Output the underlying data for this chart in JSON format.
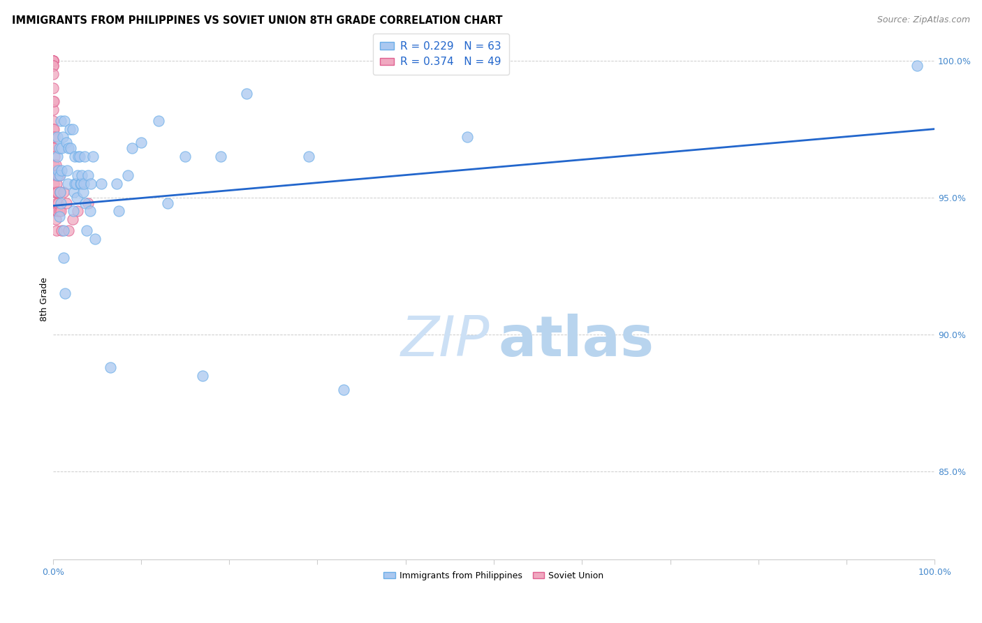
{
  "title": "IMMIGRANTS FROM PHILIPPINES VS SOVIET UNION 8TH GRADE CORRELATION CHART",
  "source": "Source: ZipAtlas.com",
  "ylabel": "8th Grade",
  "ytick_labels": [
    "100.0%",
    "95.0%",
    "90.0%",
    "85.0%"
  ],
  "ytick_values": [
    1.0,
    0.95,
    0.9,
    0.85
  ],
  "philippines_color": "#aac8f0",
  "philippines_edge": "#6aaee8",
  "soviet_color": "#f0a8c0",
  "soviet_edge": "#e06090",
  "trendline_color": "#2266cc",
  "watermark_zip_color": "#cce0f5",
  "watermark_atlas_color": "#b8d4ee",
  "background_color": "#ffffff",
  "grid_color": "#cccccc",
  "tick_color": "#4488cc",
  "xlim": [
    0.0,
    1.0
  ],
  "ylim": [
    0.818,
    1.008
  ],
  "philippines_x": [
    0.005,
    0.005,
    0.005,
    0.006,
    0.007,
    0.007,
    0.008,
    0.008,
    0.009,
    0.009,
    0.01,
    0.01,
    0.011,
    0.012,
    0.012,
    0.013,
    0.014,
    0.015,
    0.016,
    0.017,
    0.018,
    0.019,
    0.02,
    0.022,
    0.023,
    0.024,
    0.025,
    0.025,
    0.026,
    0.027,
    0.028,
    0.029,
    0.03,
    0.031,
    0.032,
    0.033,
    0.034,
    0.035,
    0.036,
    0.037,
    0.038,
    0.04,
    0.042,
    0.043,
    0.045,
    0.048,
    0.055,
    0.065,
    0.072,
    0.075,
    0.085,
    0.09,
    0.1,
    0.12,
    0.13,
    0.15,
    0.17,
    0.19,
    0.22,
    0.29,
    0.33,
    0.47,
    0.98
  ],
  "philippines_y": [
    0.972,
    0.965,
    0.958,
    0.96,
    0.968,
    0.943,
    0.958,
    0.952,
    0.948,
    0.978,
    0.968,
    0.96,
    0.972,
    0.938,
    0.928,
    0.978,
    0.915,
    0.97,
    0.96,
    0.955,
    0.968,
    0.975,
    0.968,
    0.975,
    0.945,
    0.952,
    0.955,
    0.965,
    0.955,
    0.95,
    0.958,
    0.965,
    0.965,
    0.955,
    0.955,
    0.958,
    0.952,
    0.955,
    0.965,
    0.948,
    0.938,
    0.958,
    0.945,
    0.955,
    0.965,
    0.935,
    0.955,
    0.888,
    0.955,
    0.945,
    0.958,
    0.968,
    0.97,
    0.978,
    0.948,
    0.965,
    0.885,
    0.965,
    0.988,
    0.965,
    0.88,
    0.972,
    0.998
  ],
  "soviet_x": [
    0.0,
    0.0,
    0.0,
    0.0,
    0.0,
    0.0,
    0.0,
    0.0,
    0.0,
    0.0,
    0.0,
    0.0,
    0.0,
    0.0,
    0.0,
    0.0,
    0.0,
    0.001,
    0.001,
    0.001,
    0.001,
    0.001,
    0.002,
    0.002,
    0.002,
    0.002,
    0.002,
    0.003,
    0.003,
    0.003,
    0.003,
    0.004,
    0.004,
    0.004,
    0.005,
    0.005,
    0.006,
    0.006,
    0.007,
    0.007,
    0.008,
    0.009,
    0.01,
    0.012,
    0.015,
    0.018,
    0.022,
    0.028,
    0.04
  ],
  "soviet_y": [
    1.0,
    1.0,
    1.0,
    1.0,
    1.0,
    1.0,
    0.998,
    0.998,
    0.995,
    0.99,
    0.985,
    0.982,
    0.978,
    0.975,
    0.972,
    0.968,
    0.96,
    0.985,
    0.975,
    0.968,
    0.962,
    0.955,
    0.972,
    0.965,
    0.958,
    0.952,
    0.945,
    0.962,
    0.958,
    0.952,
    0.942,
    0.955,
    0.948,
    0.938,
    0.952,
    0.945,
    0.958,
    0.948,
    0.958,
    0.945,
    0.952,
    0.945,
    0.938,
    0.952,
    0.948,
    0.938,
    0.942,
    0.945,
    0.948
  ],
  "trendline_x0": 0.0,
  "trendline_x1": 1.0,
  "trendline_y0": 0.947,
  "trendline_y1": 0.975,
  "title_fontsize": 10.5,
  "source_fontsize": 9,
  "axis_label_fontsize": 9,
  "tick_fontsize": 9,
  "legend_fontsize": 11,
  "scatter_size": 120,
  "scatter_alpha": 0.75
}
